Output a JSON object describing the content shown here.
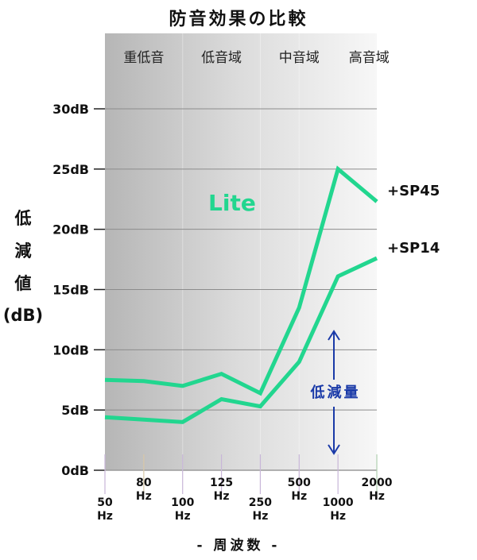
{
  "chart_data": {
    "type": "line",
    "title": "防音効果の比較",
    "ylabel": "低減値",
    "ylabel_unit": "(dB)",
    "xlabel": "- 周波数 -",
    "bands": [
      "重低音",
      "低音域",
      "中音域",
      "高音域"
    ],
    "x_labels": [
      {
        "value": "50",
        "unit": "Hz"
      },
      {
        "value": "80",
        "unit": "Hz"
      },
      {
        "value": "100",
        "unit": "Hz"
      },
      {
        "value": "125",
        "unit": "Hz"
      },
      {
        "value": "250",
        "unit": "Hz"
      },
      {
        "value": "500",
        "unit": "Hz"
      },
      {
        "value": "1000",
        "unit": "Hz"
      },
      {
        "value": "2000",
        "unit": "Hz"
      }
    ],
    "y_ticks": [
      "0dB",
      "5dB",
      "10dB",
      "15dB",
      "20dB",
      "25dB",
      "30dB"
    ],
    "ylim": [
      0,
      30
    ],
    "grid": true,
    "series": [
      {
        "name": "+SP45",
        "values": [
          7.5,
          7.4,
          7.0,
          8.0,
          6.4,
          13.5,
          25.0,
          22.3
        ]
      },
      {
        "name": "+SP14",
        "values": [
          4.4,
          4.2,
          4.0,
          5.9,
          5.3,
          9.0,
          16.1,
          17.6
        ]
      }
    ],
    "annotations": {
      "product": "Lite",
      "reduction": "低減量",
      "reduction_arrow": "↕"
    },
    "colors": {
      "line": "#22d68f",
      "lite_text": "#22d68f",
      "reduction_text": "#1a3aa8"
    }
  }
}
